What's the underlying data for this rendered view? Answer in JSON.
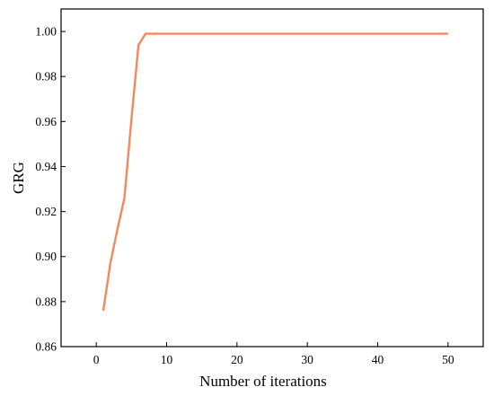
{
  "chart_data": {
    "type": "line",
    "title": "",
    "xlabel": "Number of iterations",
    "ylabel": "GRG",
    "xlim": [
      -5,
      55
    ],
    "ylim": [
      0.86,
      1.01
    ],
    "x_ticks": [
      0,
      10,
      20,
      30,
      40,
      50
    ],
    "x_tick_labels": [
      "0",
      "10",
      "20",
      "30",
      "40",
      "50"
    ],
    "y_ticks": [
      0.86,
      0.88,
      0.9,
      0.92,
      0.94,
      0.96,
      0.98,
      1.0
    ],
    "y_tick_labels": [
      "0.86",
      "0.88",
      "0.90",
      "0.92",
      "0.94",
      "0.96",
      "0.98",
      "1.00"
    ],
    "grid": false,
    "legend": "none",
    "series": [
      {
        "color": "#f4875b",
        "x": [
          1,
          2,
          3,
          4,
          5,
          6,
          7,
          8,
          10,
          20,
          30,
          40,
          50
        ],
        "y": [
          0.876,
          0.897,
          0.912,
          0.926,
          0.961,
          0.994,
          0.999,
          0.999,
          0.999,
          0.999,
          0.999,
          0.999,
          0.999
        ]
      }
    ]
  }
}
